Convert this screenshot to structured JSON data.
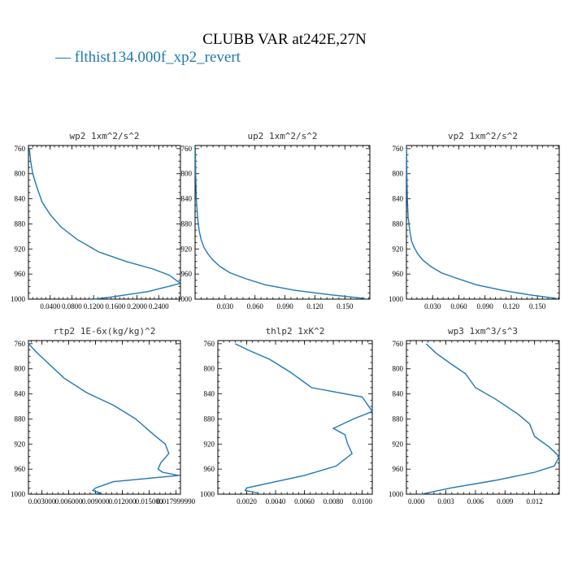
{
  "figure": {
    "title": "CLUBB VAR at242E,27N",
    "legend": "— flthist134.000f_xp2_revert",
    "line_color": "#1f77b4"
  },
  "chart_data": [
    {
      "type": "line",
      "title": "wp2   1xm^2/s^2",
      "xlim": [
        0,
        0.28
      ],
      "ylim": [
        1000,
        755
      ],
      "xticks": [
        0.04,
        0.08,
        0.12,
        0.16,
        0.2,
        0.24
      ],
      "xtick_labels": [
        "0.0400",
        "0.0800",
        "0.1200",
        "0.1600",
        "0.2000",
        "0.2400"
      ],
      "yticks": [
        760,
        800,
        840,
        880,
        920,
        960,
        1000
      ],
      "x": [
        0.0015,
        0.004,
        0.008,
        0.015,
        0.025,
        0.04,
        0.06,
        0.09,
        0.13,
        0.18,
        0.23,
        0.26,
        0.28,
        0.22,
        0.15,
        0.12
      ],
      "y": [
        760,
        780,
        800,
        820,
        845,
        865,
        885,
        905,
        925,
        940,
        952,
        962,
        975,
        988,
        997,
        1000
      ]
    },
    {
      "type": "line",
      "title": "up2   1xm^2/s^2",
      "xlim": [
        0,
        0.175
      ],
      "ylim": [
        1000,
        755
      ],
      "xticks": [
        0.03,
        0.06,
        0.09,
        0.12,
        0.15
      ],
      "xtick_labels": [
        "0.030",
        "0.060",
        "0.090",
        "0.120",
        "0.150"
      ],
      "yticks": [
        760,
        800,
        840,
        880,
        920,
        960,
        1000
      ],
      "x": [
        0.0003,
        0.0006,
        0.0012,
        0.0025,
        0.004,
        0.006,
        0.009,
        0.013,
        0.018,
        0.025,
        0.035,
        0.05,
        0.07,
        0.1,
        0.135,
        0.17
      ],
      "y": [
        760,
        800,
        840,
        870,
        890,
        905,
        918,
        928,
        938,
        948,
        958,
        967,
        977,
        986,
        993,
        999
      ]
    },
    {
      "type": "line",
      "title": "vp2   1xm^2/s^2",
      "xlim": [
        0,
        0.175
      ],
      "ylim": [
        1000,
        755
      ],
      "xticks": [
        0.03,
        0.06,
        0.09,
        0.12,
        0.15
      ],
      "xtick_labels": [
        "0.030",
        "0.060",
        "0.090",
        "0.120",
        "0.150"
      ],
      "yticks": [
        760,
        800,
        840,
        880,
        920,
        960,
        1000
      ],
      "x": [
        0.0002,
        0.0005,
        0.001,
        0.002,
        0.004,
        0.006,
        0.009,
        0.013,
        0.019,
        0.028,
        0.04,
        0.058,
        0.08,
        0.11,
        0.14,
        0.172
      ],
      "y": [
        760,
        800,
        840,
        870,
        892,
        908,
        918,
        928,
        938,
        948,
        958,
        967,
        977,
        986,
        993,
        999
      ]
    },
    {
      "type": "line",
      "title": "rtp2   1E-6x(kg/kg)^2",
      "xlim": [
        0.0015,
        0.0185
      ],
      "ylim": [
        1000,
        755
      ],
      "xticks": [
        0.003,
        0.006,
        0.009,
        0.012,
        0.015,
        0.018
      ],
      "xtick_labels": [
        "0.003000",
        "0.006000",
        "0.009000",
        "0.012000",
        "0.015000",
        "0.017999990"
      ],
      "yticks": [
        760,
        800,
        840,
        880,
        920,
        960,
        1000
      ],
      "x": [
        0.0015,
        0.0025,
        0.004,
        0.0055,
        0.008,
        0.011,
        0.0135,
        0.0155,
        0.0168,
        0.0172,
        0.0163,
        0.016,
        0.0165,
        0.0183,
        0.011,
        0.009,
        0.0087,
        0.0096,
        0.0088
      ],
      "y": [
        760,
        775,
        795,
        815,
        838,
        858,
        880,
        905,
        920,
        935,
        950,
        960,
        965,
        970,
        980,
        990,
        994,
        998,
        1000
      ]
    },
    {
      "type": "line",
      "title": "thlp2   1xK^2",
      "xlim": [
        0.0,
        0.0107
      ],
      "ylim": [
        1000,
        755
      ],
      "xticks": [
        0.002,
        0.004,
        0.006,
        0.008,
        0.01
      ],
      "xtick_labels": [
        "0.0020",
        "0.0040",
        "0.0060",
        "0.0080",
        "0.0100"
      ],
      "yticks": [
        760,
        800,
        840,
        880,
        920,
        960,
        1000
      ],
      "x": [
        0.0012,
        0.0021,
        0.0036,
        0.005,
        0.0062,
        0.0065,
        0.01,
        0.0107,
        0.0094,
        0.008,
        0.0088,
        0.009,
        0.0093,
        0.0082,
        0.006,
        0.004,
        0.002,
        0.0019,
        0.0028
      ],
      "y": [
        760,
        770,
        785,
        805,
        825,
        830,
        845,
        868,
        880,
        895,
        905,
        920,
        935,
        955,
        970,
        980,
        990,
        994,
        998
      ]
    },
    {
      "type": "line",
      "title": "wp3   1xm^3/s^3",
      "xlim": [
        -0.001,
        0.0145
      ],
      "ylim": [
        1000,
        755
      ],
      "xticks": [
        0.0,
        0.003,
        0.006,
        0.009,
        0.012
      ],
      "xtick_labels": [
        "0.000",
        "0.003",
        "0.006",
        "0.009",
        "0.012"
      ],
      "yticks": [
        760,
        800,
        840,
        880,
        920,
        960,
        1000
      ],
      "x": [
        0.001,
        0.002,
        0.0035,
        0.005,
        0.006,
        0.008,
        0.0103,
        0.0115,
        0.012,
        0.0135,
        0.0145,
        0.014,
        0.012,
        0.008,
        0.0035,
        0.0005
      ],
      "y": [
        760,
        775,
        792,
        808,
        830,
        848,
        872,
        888,
        908,
        925,
        940,
        955,
        965,
        978,
        990,
        1000
      ]
    }
  ]
}
